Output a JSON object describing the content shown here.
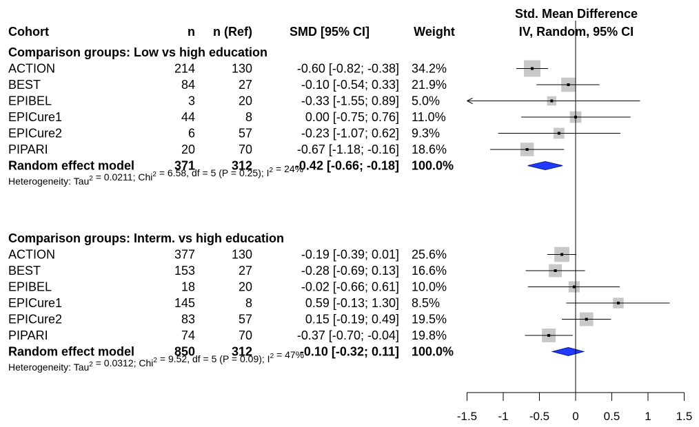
{
  "chart_data": {
    "type": "forest",
    "columns": {
      "cohort": "Cohort",
      "n": "n",
      "n_ref": "n (Ref)",
      "smd": "SMD [95% CI]",
      "weight": "Weight",
      "plot_title_1": "Std. Mean Difference",
      "plot_title_2": "IV, Random, 95% CI"
    },
    "xlim": [
      -1.5,
      1.5
    ],
    "xticks": [
      "-1.5",
      "-1",
      "-0.5",
      "0",
      "0.5",
      "1",
      "1.5"
    ],
    "xtick_values": [
      -1.5,
      -1,
      -0.5,
      0,
      0.5,
      1,
      1.5
    ],
    "reference_line": 0,
    "groups": [
      {
        "label": "Comparison groups: Low vs high education",
        "studies": [
          {
            "cohort": "ACTION",
            "n": "214",
            "n_ref": "130",
            "smd_text": "-0.60 [-0.82; -0.38]",
            "weight": "34.2%",
            "est": -0.6,
            "lo": -0.82,
            "hi": -0.38,
            "w": 34.2
          },
          {
            "cohort": "BEST",
            "n": "84",
            "n_ref": "27",
            "smd_text": "-0.10 [-0.54;  0.33]",
            "weight": "21.9%",
            "est": -0.1,
            "lo": -0.54,
            "hi": 0.33,
            "w": 21.9
          },
          {
            "cohort": "EPIBEL",
            "n": "3",
            "n_ref": "20",
            "smd_text": "-0.33 [-1.55;  0.89]",
            "weight": "5.0%",
            "est": -0.33,
            "lo": -1.55,
            "hi": 0.89,
            "w": 5.0
          },
          {
            "cohort": "EPICure1",
            "n": "44",
            "n_ref": "8",
            "smd_text": "0.00 [-0.75;  0.76]",
            "weight": "11.0%",
            "est": 0.0,
            "lo": -0.75,
            "hi": 0.76,
            "w": 11.0
          },
          {
            "cohort": "EPICure2",
            "n": "6",
            "n_ref": "57",
            "smd_text": "-0.23 [-1.07;  0.62]",
            "weight": "9.3%",
            "est": -0.23,
            "lo": -1.07,
            "hi": 0.62,
            "w": 9.3
          },
          {
            "cohort": "PIPARI",
            "n": "20",
            "n_ref": "70",
            "smd_text": "-0.67 [-1.18; -0.16]",
            "weight": "18.6%",
            "est": -0.67,
            "lo": -1.18,
            "hi": -0.16,
            "w": 18.6
          }
        ],
        "summary": {
          "cohort": "Random effect model",
          "n": "371",
          "n_ref": "312",
          "smd_text": "-0.42 [-0.66; -0.18]",
          "weight": "100.0%",
          "est": -0.42,
          "lo": -0.66,
          "hi": -0.18
        },
        "heterogeneity": {
          "tau2": "0.0211",
          "chi2": "6.58",
          "df_p": "df = 5 (P = 0.25)",
          "i2": "24%"
        }
      },
      {
        "label": "Comparison groups: Interm. vs high education",
        "studies": [
          {
            "cohort": "ACTION",
            "n": "377",
            "n_ref": "130",
            "smd_text": "-0.19 [-0.39;  0.01]",
            "weight": "25.6%",
            "est": -0.19,
            "lo": -0.39,
            "hi": 0.01,
            "w": 25.6
          },
          {
            "cohort": "BEST",
            "n": "153",
            "n_ref": "27",
            "smd_text": "-0.28 [-0.69;  0.13]",
            "weight": "16.6%",
            "est": -0.28,
            "lo": -0.69,
            "hi": 0.13,
            "w": 16.6
          },
          {
            "cohort": "EPIBEL",
            "n": "18",
            "n_ref": "20",
            "smd_text": "-0.02 [-0.66;  0.61]",
            "weight": "10.0%",
            "est": -0.02,
            "lo": -0.66,
            "hi": 0.61,
            "w": 10.0
          },
          {
            "cohort": "EPICure1",
            "n": "145",
            "n_ref": "8",
            "smd_text": "0.59 [-0.13;  1.30]",
            "weight": "8.5%",
            "est": 0.59,
            "lo": -0.13,
            "hi": 1.3,
            "w": 8.5
          },
          {
            "cohort": "EPICure2",
            "n": "83",
            "n_ref": "57",
            "smd_text": "0.15 [-0.19;  0.49]",
            "weight": "19.5%",
            "est": 0.15,
            "lo": -0.19,
            "hi": 0.49,
            "w": 19.5
          },
          {
            "cohort": "PIPARI",
            "n": "74",
            "n_ref": "70",
            "smd_text": "-0.37 [-0.70; -0.04]",
            "weight": "19.8%",
            "est": -0.37,
            "lo": -0.7,
            "hi": -0.04,
            "w": 19.8
          }
        ],
        "summary": {
          "cohort": "Random effect model",
          "n": "850",
          "n_ref": "312",
          "smd_text": "-0.10 [-0.32;  0.11]",
          "weight": "100.0%",
          "est": -0.1,
          "lo": -0.32,
          "hi": 0.11
        },
        "heterogeneity": {
          "tau2": "0.0312",
          "chi2": "9.52",
          "df_p": "df = 5 (P = 0.09)",
          "i2": "47%"
        }
      }
    ],
    "colors": {
      "box": "#c8c8c8",
      "ci_line": "#000000",
      "diamond": "#1f3bff",
      "diamond_edge": "#0a1a8a"
    }
  }
}
